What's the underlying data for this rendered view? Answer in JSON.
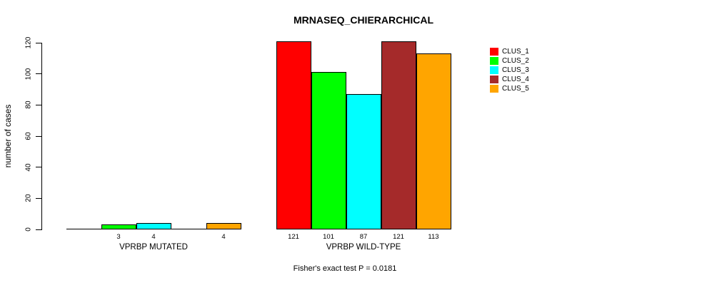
{
  "chart_data": {
    "type": "bar",
    "title": "MRNASEQ_CHIERARCHICAL",
    "ylabel": "number of cases",
    "ylim": [
      0,
      120
    ],
    "yticks": [
      0,
      20,
      40,
      60,
      80,
      100,
      120
    ],
    "grid": false,
    "legend_position": "right-outside",
    "series_names": [
      "CLUS_1",
      "CLUS_2",
      "CLUS_3",
      "CLUS_4",
      "CLUS_5"
    ],
    "colors": [
      "#FF0000",
      "#00FF00",
      "#00FFFF",
      "#A52A2A",
      "#FFA500"
    ],
    "groups": [
      {
        "label": "VPRBP MUTATED",
        "values": [
          0,
          3,
          4,
          0,
          4
        ],
        "bar_labels": [
          "",
          "3",
          "4",
          "",
          "4"
        ]
      },
      {
        "label": "VPRBP WILD-TYPE",
        "values": [
          121,
          101,
          87,
          121,
          113
        ],
        "bar_labels": [
          "121",
          "101",
          "87",
          "121",
          "113"
        ]
      }
    ],
    "footnote": "Fisher's exact test P = 0.0181"
  }
}
